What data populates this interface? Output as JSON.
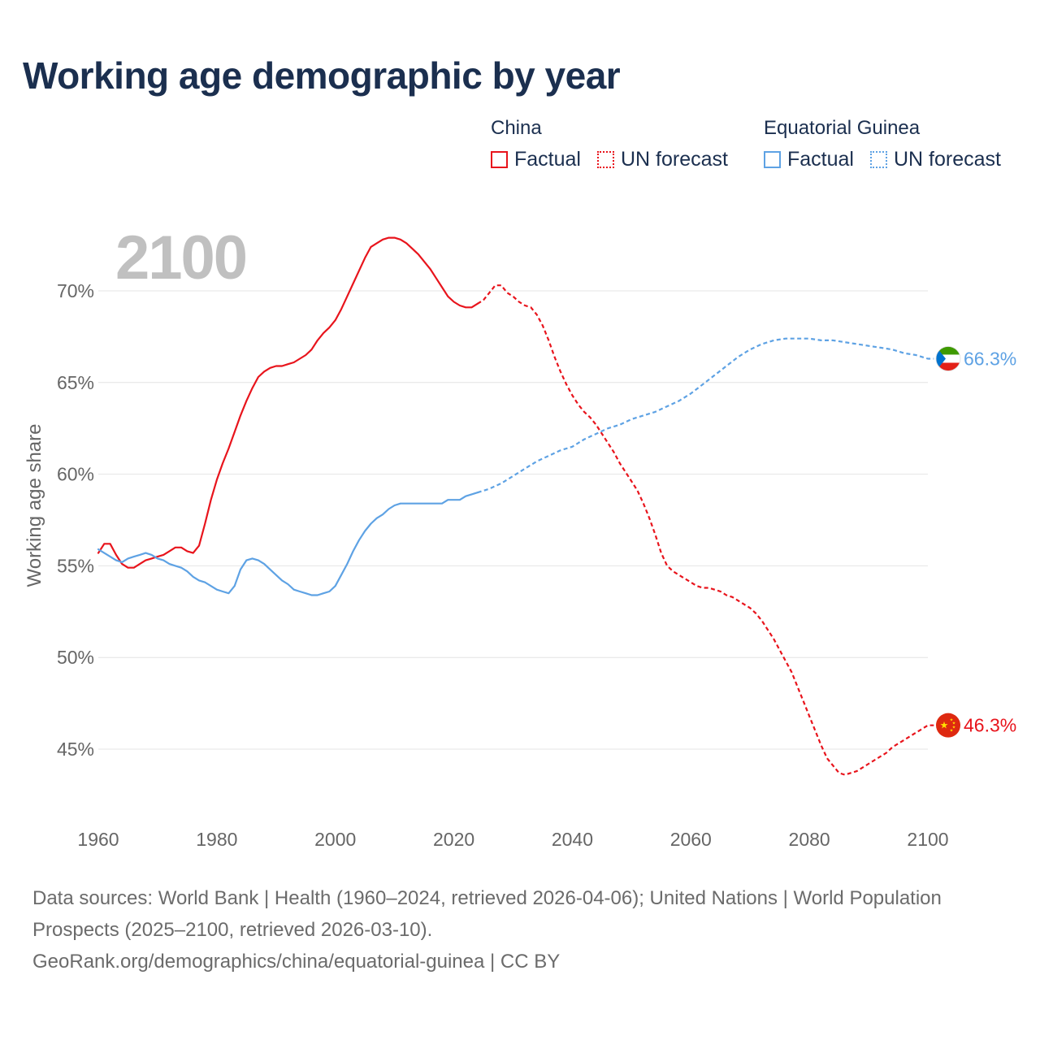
{
  "title": "Working age demographic by year",
  "year_watermark": "2100",
  "legend": {
    "groups": [
      {
        "country": "China",
        "factual_label": "Factual",
        "forecast_label": "UN forecast",
        "color": "#e8141c"
      },
      {
        "country": "Equatorial Guinea",
        "factual_label": "Factual",
        "forecast_label": "UN forecast",
        "color": "#5ea2e4"
      }
    ]
  },
  "footer": {
    "sources": "Data sources: World Bank | Health (1960–2024, retrieved 2026-04-06); United Nations | World Population Prospects (2025–2100, retrieved 2026-03-10).",
    "url": "GeoRank.org/demographics/china/equatorial-guinea | CC BY"
  },
  "chart_data": {
    "type": "line",
    "title": "Working age demographic by year",
    "xlabel": "",
    "ylabel": "Working age share",
    "xlim": [
      1960,
      2103
    ],
    "ylim": [
      41.5,
      73.5
    ],
    "x_ticks": [
      1960,
      1980,
      2000,
      2020,
      2040,
      2060,
      2080,
      2100
    ],
    "x_tick_labels": [
      "1960",
      "1980",
      "2000",
      "2020",
      "2040",
      "2060",
      "2080",
      "2100"
    ],
    "y_ticks": [
      45,
      50,
      55,
      60,
      65,
      70
    ],
    "y_tick_labels": [
      "45%",
      "50%",
      "55%",
      "60%",
      "65%",
      "70%"
    ],
    "grid": true,
    "series": [
      {
        "name": "China",
        "color": "#e8141c",
        "end_label": "46.3%",
        "factual": [
          [
            1960,
            55.7
          ],
          [
            1961,
            56.2
          ],
          [
            1962,
            56.2
          ],
          [
            1963,
            55.6
          ],
          [
            1964,
            55.1
          ],
          [
            1965,
            54.9
          ],
          [
            1966,
            54.9
          ],
          [
            1967,
            55.1
          ],
          [
            1968,
            55.3
          ],
          [
            1969,
            55.4
          ],
          [
            1970,
            55.5
          ],
          [
            1971,
            55.6
          ],
          [
            1972,
            55.8
          ],
          [
            1973,
            56.0
          ],
          [
            1974,
            56.0
          ],
          [
            1975,
            55.8
          ],
          [
            1976,
            55.7
          ],
          [
            1977,
            56.1
          ],
          [
            1978,
            57.3
          ],
          [
            1979,
            58.6
          ],
          [
            1980,
            59.7
          ],
          [
            1981,
            60.6
          ],
          [
            1982,
            61.4
          ],
          [
            1983,
            62.3
          ],
          [
            1984,
            63.2
          ],
          [
            1985,
            64.0
          ],
          [
            1986,
            64.7
          ],
          [
            1987,
            65.3
          ],
          [
            1988,
            65.6
          ],
          [
            1989,
            65.8
          ],
          [
            1990,
            65.9
          ],
          [
            1991,
            65.9
          ],
          [
            1992,
            66.0
          ],
          [
            1993,
            66.1
          ],
          [
            1994,
            66.3
          ],
          [
            1995,
            66.5
          ],
          [
            1996,
            66.8
          ],
          [
            1997,
            67.3
          ],
          [
            1998,
            67.7
          ],
          [
            1999,
            68.0
          ],
          [
            2000,
            68.4
          ],
          [
            2001,
            69.0
          ],
          [
            2002,
            69.7
          ],
          [
            2003,
            70.4
          ],
          [
            2004,
            71.1
          ],
          [
            2005,
            71.8
          ],
          [
            2006,
            72.4
          ],
          [
            2007,
            72.6
          ],
          [
            2008,
            72.8
          ],
          [
            2009,
            72.9
          ],
          [
            2010,
            72.9
          ],
          [
            2011,
            72.8
          ],
          [
            2012,
            72.6
          ],
          [
            2013,
            72.3
          ],
          [
            2014,
            72.0
          ],
          [
            2015,
            71.6
          ],
          [
            2016,
            71.2
          ],
          [
            2017,
            70.7
          ],
          [
            2018,
            70.2
          ],
          [
            2019,
            69.7
          ],
          [
            2020,
            69.4
          ],
          [
            2021,
            69.2
          ],
          [
            2022,
            69.1
          ],
          [
            2023,
            69.1
          ],
          [
            2024,
            69.3
          ]
        ],
        "forecast": [
          [
            2024,
            69.3
          ],
          [
            2025,
            69.5
          ],
          [
            2026,
            69.9
          ],
          [
            2027,
            70.3
          ],
          [
            2028,
            70.3
          ],
          [
            2029,
            69.9
          ],
          [
            2030,
            69.7
          ],
          [
            2031,
            69.4
          ],
          [
            2032,
            69.2
          ],
          [
            2033,
            69.1
          ],
          [
            2034,
            68.7
          ],
          [
            2035,
            68.1
          ],
          [
            2036,
            67.3
          ],
          [
            2037,
            66.4
          ],
          [
            2038,
            65.6
          ],
          [
            2039,
            64.9
          ],
          [
            2040,
            64.3
          ],
          [
            2041,
            63.8
          ],
          [
            2042,
            63.4
          ],
          [
            2043,
            63.1
          ],
          [
            2044,
            62.7
          ],
          [
            2045,
            62.2
          ],
          [
            2046,
            61.7
          ],
          [
            2047,
            61.2
          ],
          [
            2048,
            60.6
          ],
          [
            2049,
            60.1
          ],
          [
            2050,
            59.6
          ],
          [
            2051,
            59.1
          ],
          [
            2052,
            58.4
          ],
          [
            2053,
            57.6
          ],
          [
            2054,
            56.7
          ],
          [
            2055,
            55.7
          ],
          [
            2056,
            55.0
          ],
          [
            2057,
            54.7
          ],
          [
            2058,
            54.5
          ],
          [
            2059,
            54.3
          ],
          [
            2060,
            54.1
          ],
          [
            2061,
            53.9
          ],
          [
            2062,
            53.8
          ],
          [
            2063,
            53.8
          ],
          [
            2064,
            53.7
          ],
          [
            2065,
            53.6
          ],
          [
            2066,
            53.4
          ],
          [
            2067,
            53.3
          ],
          [
            2068,
            53.1
          ],
          [
            2069,
            52.9
          ],
          [
            2070,
            52.7
          ],
          [
            2071,
            52.4
          ],
          [
            2072,
            52.0
          ],
          [
            2073,
            51.5
          ],
          [
            2074,
            51.0
          ],
          [
            2075,
            50.4
          ],
          [
            2076,
            49.8
          ],
          [
            2077,
            49.2
          ],
          [
            2078,
            48.4
          ],
          [
            2079,
            47.6
          ],
          [
            2080,
            46.8
          ],
          [
            2081,
            46.0
          ],
          [
            2082,
            45.2
          ],
          [
            2083,
            44.5
          ],
          [
            2084,
            44.1
          ],
          [
            2085,
            43.7
          ],
          [
            2086,
            43.6
          ],
          [
            2087,
            43.7
          ],
          [
            2088,
            43.8
          ],
          [
            2089,
            44.0
          ],
          [
            2090,
            44.2
          ],
          [
            2091,
            44.4
          ],
          [
            2092,
            44.6
          ],
          [
            2093,
            44.8
          ],
          [
            2094,
            45.1
          ],
          [
            2095,
            45.3
          ],
          [
            2096,
            45.5
          ],
          [
            2097,
            45.7
          ],
          [
            2098,
            45.9
          ],
          [
            2099,
            46.1
          ],
          [
            2100,
            46.3
          ],
          [
            2101,
            46.3
          ]
        ]
      },
      {
        "name": "Equatorial Guinea",
        "color": "#5ea2e4",
        "end_label": "66.3%",
        "factual": [
          [
            1960,
            55.9
          ],
          [
            1961,
            55.7
          ],
          [
            1962,
            55.5
          ],
          [
            1963,
            55.3
          ],
          [
            1964,
            55.2
          ],
          [
            1965,
            55.4
          ],
          [
            1966,
            55.5
          ],
          [
            1967,
            55.6
          ],
          [
            1968,
            55.7
          ],
          [
            1969,
            55.6
          ],
          [
            1970,
            55.4
          ],
          [
            1971,
            55.3
          ],
          [
            1972,
            55.1
          ],
          [
            1973,
            55.0
          ],
          [
            1974,
            54.9
          ],
          [
            1975,
            54.7
          ],
          [
            1976,
            54.4
          ],
          [
            1977,
            54.2
          ],
          [
            1978,
            54.1
          ],
          [
            1979,
            53.9
          ],
          [
            1980,
            53.7
          ],
          [
            1981,
            53.6
          ],
          [
            1982,
            53.5
          ],
          [
            1983,
            53.9
          ],
          [
            1984,
            54.8
          ],
          [
            1985,
            55.3
          ],
          [
            1986,
            55.4
          ],
          [
            1987,
            55.3
          ],
          [
            1988,
            55.1
          ],
          [
            1989,
            54.8
          ],
          [
            1990,
            54.5
          ],
          [
            1991,
            54.2
          ],
          [
            1992,
            54.0
          ],
          [
            1993,
            53.7
          ],
          [
            1994,
            53.6
          ],
          [
            1995,
            53.5
          ],
          [
            1996,
            53.4
          ],
          [
            1997,
            53.4
          ],
          [
            1998,
            53.5
          ],
          [
            1999,
            53.6
          ],
          [
            2000,
            53.9
          ],
          [
            2001,
            54.5
          ],
          [
            2002,
            55.1
          ],
          [
            2003,
            55.8
          ],
          [
            2004,
            56.4
          ],
          [
            2005,
            56.9
          ],
          [
            2006,
            57.3
          ],
          [
            2007,
            57.6
          ],
          [
            2008,
            57.8
          ],
          [
            2009,
            58.1
          ],
          [
            2010,
            58.3
          ],
          [
            2011,
            58.4
          ],
          [
            2012,
            58.4
          ],
          [
            2013,
            58.4
          ],
          [
            2014,
            58.4
          ],
          [
            2015,
            58.4
          ],
          [
            2016,
            58.4
          ],
          [
            2017,
            58.4
          ],
          [
            2018,
            58.4
          ],
          [
            2019,
            58.6
          ],
          [
            2020,
            58.6
          ],
          [
            2021,
            58.6
          ],
          [
            2022,
            58.8
          ],
          [
            2023,
            58.9
          ],
          [
            2024,
            59.0
          ]
        ],
        "forecast": [
          [
            2024,
            59.0
          ],
          [
            2026,
            59.2
          ],
          [
            2028,
            59.5
          ],
          [
            2030,
            59.9
          ],
          [
            2032,
            60.3
          ],
          [
            2034,
            60.7
          ],
          [
            2036,
            61.0
          ],
          [
            2038,
            61.3
          ],
          [
            2040,
            61.5
          ],
          [
            2042,
            61.9
          ],
          [
            2044,
            62.2
          ],
          [
            2046,
            62.5
          ],
          [
            2048,
            62.7
          ],
          [
            2050,
            63.0
          ],
          [
            2052,
            63.2
          ],
          [
            2054,
            63.4
          ],
          [
            2056,
            63.7
          ],
          [
            2058,
            64.0
          ],
          [
            2060,
            64.4
          ],
          [
            2062,
            64.9
          ],
          [
            2064,
            65.4
          ],
          [
            2066,
            65.9
          ],
          [
            2068,
            66.4
          ],
          [
            2070,
            66.8
          ],
          [
            2072,
            67.1
          ],
          [
            2074,
            67.3
          ],
          [
            2076,
            67.4
          ],
          [
            2078,
            67.4
          ],
          [
            2080,
            67.4
          ],
          [
            2082,
            67.3
          ],
          [
            2084,
            67.3
          ],
          [
            2086,
            67.2
          ],
          [
            2088,
            67.1
          ],
          [
            2090,
            67.0
          ],
          [
            2092,
            66.9
          ],
          [
            2094,
            66.8
          ],
          [
            2096,
            66.6
          ],
          [
            2098,
            66.5
          ],
          [
            2100,
            66.3
          ],
          [
            2101,
            66.3
          ]
        ]
      }
    ]
  }
}
